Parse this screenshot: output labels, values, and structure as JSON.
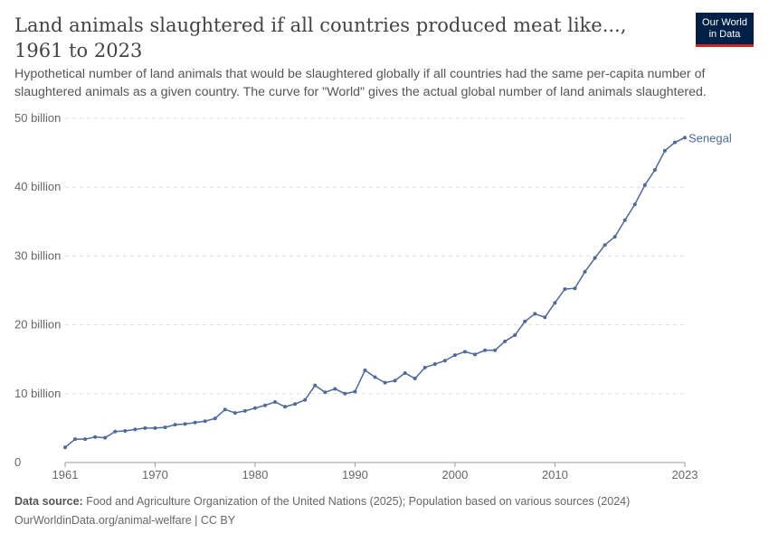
{
  "header": {
    "title": "Land animals slaughtered if all countries produced meat like..., 1961 to 2023",
    "subtitle": "Hypothetical number of land animals that would be slaughtered globally if all countries had the same per-capita number of slaughtered animals as a given country. The curve for \"World\" gives the actual global number of land animals slaughtered.",
    "logo_text": "Our World in Data"
  },
  "footer": {
    "source_label": "Data source:",
    "source": "Food and Agriculture Organization of the United Nations (2025); Population based on various sources (2024)",
    "url": "OurWorldinData.org/animal-welfare | CC BY"
  },
  "chart_data": {
    "type": "line",
    "xlim": [
      1961,
      2023
    ],
    "ylim": [
      0,
      50
    ],
    "grid": "horizontal dashed",
    "x_ticks": [
      "1961",
      "1970",
      "1980",
      "1990",
      "2000",
      "2010",
      "2023"
    ],
    "y_ticks": [
      "0",
      "10 billion",
      "20 billion",
      "30 billion",
      "40 billion",
      "50 billion"
    ],
    "series": [
      {
        "name": "Senegal",
        "color": "#4c6a9c",
        "x": [
          1961,
          1962,
          1963,
          1964,
          1965,
          1966,
          1967,
          1968,
          1969,
          1970,
          1971,
          1972,
          1973,
          1974,
          1975,
          1976,
          1977,
          1978,
          1979,
          1980,
          1981,
          1982,
          1983,
          1984,
          1985,
          1986,
          1987,
          1988,
          1989,
          1990,
          1991,
          1992,
          1993,
          1994,
          1995,
          1996,
          1997,
          1998,
          1999,
          2000,
          2001,
          2002,
          2003,
          2004,
          2005,
          2006,
          2007,
          2008,
          2009,
          2010,
          2011,
          2012,
          2013,
          2014,
          2015,
          2016,
          2017,
          2018,
          2019,
          2020,
          2021,
          2022,
          2023
        ],
        "values": [
          2.2,
          3.4,
          3.4,
          3.7,
          3.6,
          4.5,
          4.6,
          4.8,
          5.0,
          5.0,
          5.1,
          5.5,
          5.6,
          5.8,
          6.0,
          6.4,
          7.7,
          7.2,
          7.5,
          7.9,
          8.3,
          8.8,
          8.1,
          8.5,
          9.1,
          11.2,
          10.2,
          10.7,
          10.0,
          10.3,
          13.4,
          12.4,
          11.6,
          11.9,
          13.0,
          12.2,
          13.8,
          14.3,
          14.8,
          15.6,
          16.1,
          15.7,
          16.3,
          16.3,
          17.6,
          18.5,
          20.5,
          21.6,
          21.1,
          23.2,
          25.2,
          25.3,
          27.7,
          29.7,
          31.6,
          32.8,
          35.2,
          37.5,
          40.3,
          42.5,
          45.3,
          46.5,
          47.2
        ]
      }
    ]
  }
}
